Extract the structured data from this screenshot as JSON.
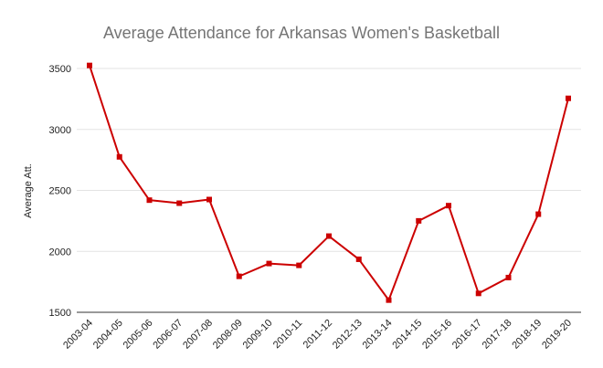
{
  "chart_data": {
    "type": "line",
    "title": "Average Attendance for Arkansas Women's Basketball",
    "xlabel": "",
    "ylabel": "Average Att.",
    "categories": [
      "2003-04",
      "2004-05",
      "2005-06",
      "2006-07",
      "2007-08",
      "2008-09",
      "2009-10",
      "2010-11",
      "2011-12",
      "2012-13",
      "2013-14",
      "2014-15",
      "2015-16",
      "2016-17",
      "2017-18",
      "2018-19",
      "2019-20"
    ],
    "series": [
      {
        "values": [
          3525,
          2775,
          2420,
          2395,
          2425,
          1795,
          1900,
          1885,
          2125,
          1935,
          1600,
          2250,
          2375,
          1655,
          1785,
          2305,
          3255
        ],
        "color": "#cc0000",
        "marker": "square"
      }
    ],
    "ylim": [
      1500,
      3500
    ],
    "yticks": [
      1500,
      2000,
      2500,
      3000,
      3500
    ],
    "grid": true,
    "legend": "none"
  }
}
